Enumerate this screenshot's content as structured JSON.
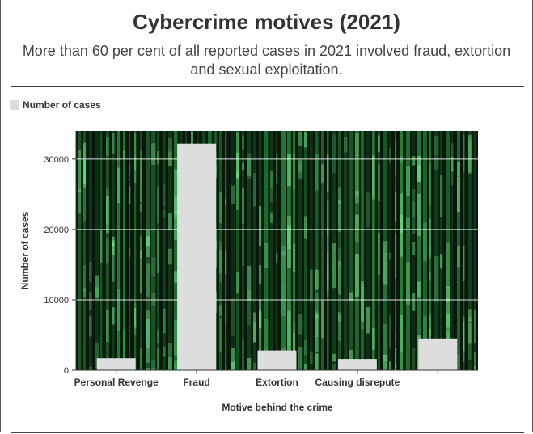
{
  "header": {
    "title": "Cybercrime motives (2021)",
    "subtitle": "More than 60 per cent of all reported cases in 2021 involved fraud, extortion and sexual exploitation."
  },
  "colors": {
    "bar": "#dddddd",
    "gridline": "#ffffff",
    "plot_background": "#0a150c",
    "matrix_green": "#27c24c"
  },
  "chart_data": {
    "type": "bar",
    "categories": [
      "Personal Revenge",
      "Fraud",
      "Extortion",
      "Causing disrepute",
      ""
    ],
    "series": [
      {
        "name": "Number of cases",
        "values": [
          1700,
          32200,
          2800,
          1600,
          4500
        ]
      }
    ],
    "xlabel": "Motive behind the crime",
    "ylabel": "Number of cases",
    "ylim": [
      0,
      34000
    ],
    "yticks": [
      0,
      10000,
      20000,
      30000
    ],
    "grid": true,
    "legend": "top-left",
    "background": "matrix-code image"
  }
}
